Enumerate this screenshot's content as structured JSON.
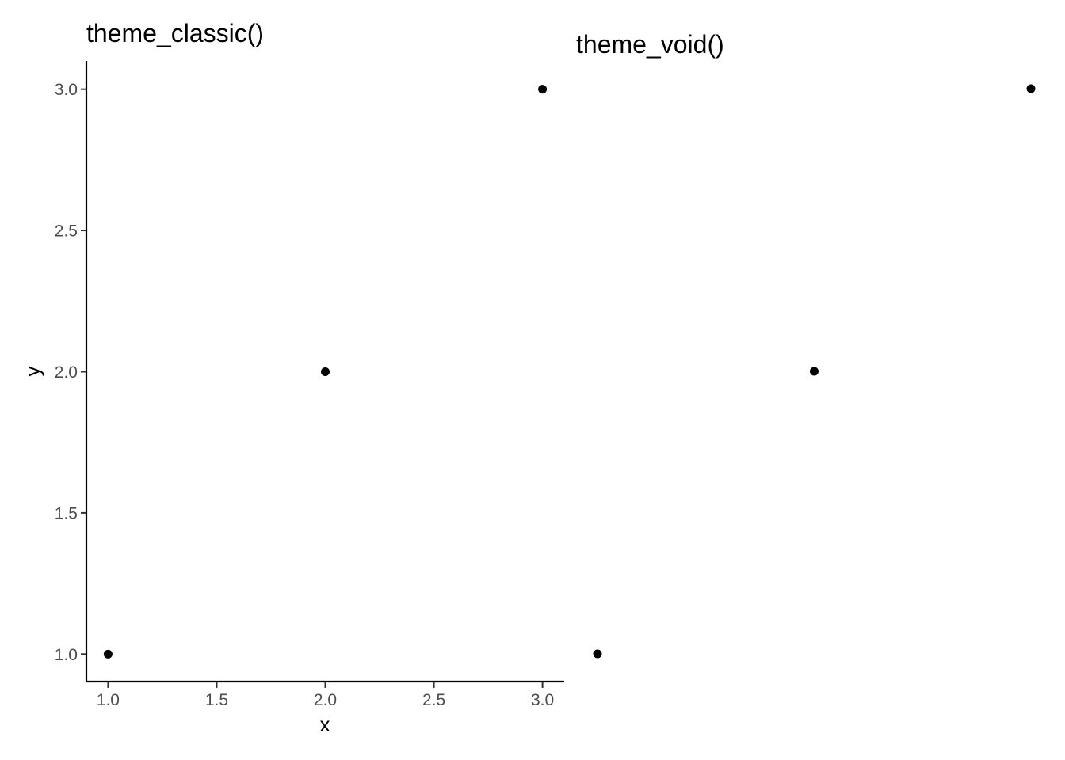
{
  "chart_data": [
    {
      "type": "scatter",
      "title": "theme_classic()",
      "xlabel": "x",
      "ylabel": "y",
      "x": [
        1,
        2,
        3
      ],
      "y": [
        1,
        2,
        3
      ],
      "xlim": [
        0.9,
        3.1
      ],
      "ylim": [
        0.9,
        3.1
      ],
      "x_ticks": [
        "1.0",
        "1.5",
        "2.0",
        "2.5",
        "3.0"
      ],
      "y_ticks": [
        "1.0",
        "1.5",
        "2.0",
        "2.5",
        "3.0"
      ],
      "grid": false,
      "axis_lines": true,
      "point_color": "#000000"
    },
    {
      "type": "scatter",
      "title": "theme_void()",
      "xlabel": "",
      "ylabel": "",
      "x": [
        1,
        2,
        3
      ],
      "y": [
        1,
        2,
        3
      ],
      "xlim": [
        1,
        3
      ],
      "ylim": [
        1,
        3
      ],
      "x_ticks": [],
      "y_ticks": [],
      "grid": false,
      "axis_lines": false,
      "point_color": "#000000"
    }
  ]
}
